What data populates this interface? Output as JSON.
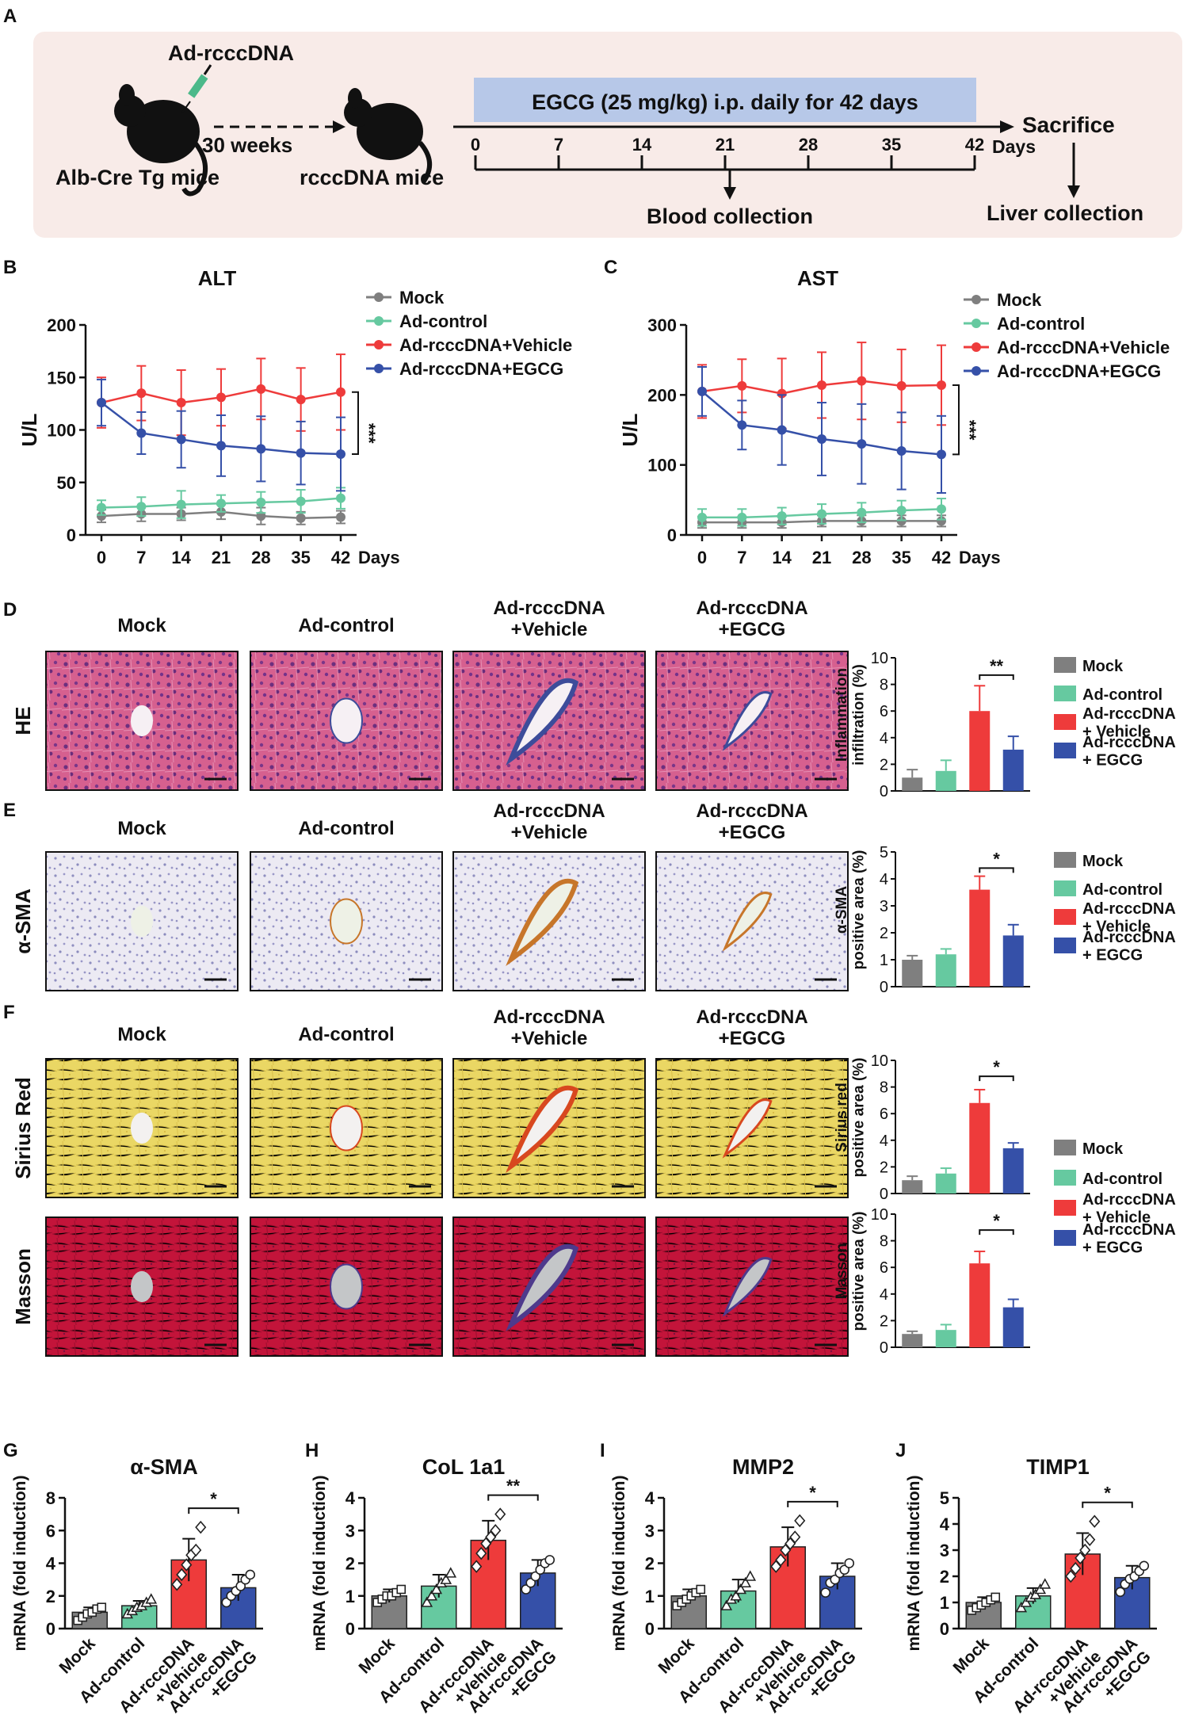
{
  "colors": {
    "mock": "#7f7f7f",
    "control": "#66c9a0",
    "vehicle": "#ee3b3b",
    "egcg": "#3550a8",
    "egcg_bar": "#b7c8e8",
    "panel_bg": "#f8ebe8"
  },
  "panel_a": {
    "letter": "A",
    "virus": "Ad-rcccDNA",
    "interval": "30 weeks",
    "mouse_left": "Alb-Cre Tg mice",
    "mouse_right": "rcccDNA mice",
    "treatment": "EGCG (25 mg/kg) i.p. daily for 42 days",
    "ticks": [
      "0",
      "7",
      "14",
      "21",
      "28",
      "35",
      "42"
    ],
    "days": "Days",
    "sacrifice": "Sacrifice",
    "blood": "Blood collection",
    "liver": "Liver collection",
    "mouse_icon": "mouse-icon",
    "syringe_icon": "syringe-icon"
  },
  "legend4": [
    "Mock",
    "Ad-control",
    "Ad-rcccDNA+Vehicle",
    "Ad-rcccDNA+EGCG"
  ],
  "legend_bar": [
    "Mock",
    "Ad-control",
    "Ad-rcccDNA\n+ Vehicle",
    "Ad-rcccDNA\n+ EGCG"
  ],
  "histology_cols": [
    "Mock",
    "Ad-control",
    "Ad-rcccDNA\n+Vehicle",
    "Ad-rcccDNA\n+EGCG"
  ],
  "stain_labels": [
    "HE",
    "α-SMA",
    "Sirius Red",
    "Masson"
  ],
  "panel_letters": [
    "B",
    "C",
    "D",
    "E",
    "F",
    "G",
    "H",
    "I",
    "J"
  ],
  "mrna_categories": [
    "Mock",
    "Ad-control",
    "Ad-rcccDNA\n+Vehicle",
    "Ad-rcccDNA\n+EGCG"
  ],
  "chart_data": [
    {
      "id": "B",
      "type": "line",
      "title": "ALT",
      "ylabel": "U/L",
      "xlabel": "Days",
      "x": [
        0,
        7,
        14,
        21,
        28,
        35,
        42
      ],
      "ylim": [
        0,
        200
      ],
      "yticks": [
        0,
        50,
        100,
        150,
        200
      ],
      "series": [
        {
          "name": "Mock",
          "values": [
            18,
            20,
            20,
            22,
            18,
            16,
            17
          ],
          "err": [
            6,
            7,
            6,
            7,
            8,
            6,
            6
          ]
        },
        {
          "name": "Ad-control",
          "values": [
            26,
            27,
            29,
            30,
            31,
            32,
            35
          ],
          "err": [
            7,
            9,
            13,
            8,
            10,
            11,
            10
          ]
        },
        {
          "name": "Ad-rcccDNA+Vehicle",
          "values": [
            126,
            135,
            126,
            131,
            139,
            129,
            136
          ],
          "err": [
            24,
            26,
            31,
            27,
            29,
            30,
            36
          ]
        },
        {
          "name": "Ad-rcccDNA+EGCG",
          "values": [
            126,
            97,
            91,
            85,
            82,
            78,
            77
          ],
          "err": [
            22,
            20,
            27,
            29,
            31,
            30,
            35
          ]
        }
      ],
      "significance": "***"
    },
    {
      "id": "C",
      "type": "line",
      "title": "AST",
      "ylabel": "U/L",
      "xlabel": "Days",
      "x": [
        0,
        7,
        14,
        21,
        28,
        35,
        42
      ],
      "ylim": [
        0,
        300
      ],
      "yticks": [
        0,
        100,
        200,
        300
      ],
      "series": [
        {
          "name": "Mock",
          "values": [
            18,
            18,
            18,
            20,
            20,
            20,
            20
          ],
          "err": [
            8,
            8,
            8,
            8,
            8,
            8,
            8
          ]
        },
        {
          "name": "Ad-control",
          "values": [
            25,
            25,
            27,
            30,
            32,
            35,
            37
          ],
          "err": [
            12,
            12,
            12,
            14,
            14,
            14,
            15
          ]
        },
        {
          "name": "Ad-rcccDNA+Vehicle",
          "values": [
            205,
            213,
            202,
            214,
            220,
            213,
            214
          ],
          "err": [
            38,
            38,
            50,
            47,
            55,
            52,
            57
          ]
        },
        {
          "name": "Ad-rcccDNA+EGCG",
          "values": [
            205,
            157,
            150,
            137,
            130,
            120,
            115
          ],
          "err": [
            35,
            35,
            50,
            52,
            57,
            55,
            55
          ]
        }
      ],
      "significance": "***"
    },
    {
      "id": "D",
      "type": "bar",
      "ylabel": "Inflammation\ninfiltration (%)",
      "ylim": [
        0,
        10
      ],
      "yticks": [
        0,
        2,
        4,
        6,
        8,
        10
      ],
      "categories": [
        "Mock",
        "Ad-control",
        "Ad-rcccDNA + Vehicle",
        "Ad-rcccDNA + EGCG"
      ],
      "values": [
        1.0,
        1.5,
        6.0,
        3.1
      ],
      "err": [
        0.6,
        0.8,
        1.9,
        1.0
      ],
      "significance": "**"
    },
    {
      "id": "E",
      "type": "bar",
      "ylabel": "α-SMA\npositive area (%)",
      "ylim": [
        0,
        5
      ],
      "yticks": [
        0,
        1,
        2,
        3,
        4,
        5
      ],
      "categories": [
        "Mock",
        "Ad-control",
        "Ad-rcccDNA + Vehicle",
        "Ad-rcccDNA + EGCG"
      ],
      "values": [
        1.0,
        1.2,
        3.6,
        1.9
      ],
      "err": [
        0.15,
        0.2,
        0.5,
        0.4
      ],
      "significance": "*"
    },
    {
      "id": "F1",
      "type": "bar",
      "ylabel": "Sirius red\npositive area (%)",
      "ylim": [
        0,
        10
      ],
      "yticks": [
        0,
        2,
        4,
        6,
        8,
        10
      ],
      "categories": [
        "Mock",
        "Ad-control",
        "Ad-rcccDNA + Vehicle",
        "Ad-rcccDNA + EGCG"
      ],
      "values": [
        1.0,
        1.5,
        6.8,
        3.4
      ],
      "err": [
        0.3,
        0.4,
        1.0,
        0.4
      ],
      "significance": "*"
    },
    {
      "id": "F2",
      "type": "bar",
      "ylabel": "Masson\npositive area (%)",
      "ylim": [
        0,
        10
      ],
      "yticks": [
        0,
        2,
        4,
        6,
        8,
        10
      ],
      "categories": [
        "Mock",
        "Ad-control",
        "Ad-rcccDNA + Vehicle",
        "Ad-rcccDNA + EGCG"
      ],
      "values": [
        1.0,
        1.3,
        6.3,
        3.0
      ],
      "err": [
        0.2,
        0.4,
        0.9,
        0.6
      ],
      "significance": "*"
    },
    {
      "id": "G",
      "type": "bar",
      "title": "α-SMA",
      "ylabel": "mRNA (fold induction)",
      "ylim": [
        0,
        8
      ],
      "yticks": [
        0,
        2,
        4,
        6,
        8
      ],
      "categories": [
        "Mock",
        "Ad-control",
        "Ad-rcccDNA+Vehicle",
        "Ad-rcccDNA+EGCG"
      ],
      "values": [
        1.0,
        1.4,
        4.2,
        2.5
      ],
      "err": [
        0.3,
        0.3,
        1.3,
        0.8
      ],
      "points": [
        [
          0.5,
          0.7,
          0.9,
          1.0,
          1.2,
          1.3
        ],
        [
          0.9,
          1.1,
          1.3,
          1.4,
          1.6,
          1.8
        ],
        [
          2.7,
          3.3,
          3.9,
          4.5,
          4.8,
          6.2
        ],
        [
          1.6,
          2.0,
          2.3,
          2.6,
          3.0,
          3.3
        ]
      ],
      "significance": "*"
    },
    {
      "id": "H",
      "type": "bar",
      "title": "CoL 1a1",
      "ylabel": "mRNA (fold induction)",
      "ylim": [
        0,
        4
      ],
      "yticks": [
        0,
        1,
        2,
        3,
        4
      ],
      "categories": [
        "Mock",
        "Ad-control",
        "Ad-rcccDNA+Vehicle",
        "Ad-rcccDNA+EGCG"
      ],
      "values": [
        1.0,
        1.3,
        2.7,
        1.7
      ],
      "err": [
        0.2,
        0.35,
        0.6,
        0.4
      ],
      "points": [
        [
          0.8,
          0.9,
          1.0,
          1.0,
          1.1,
          1.2
        ],
        [
          0.8,
          1.0,
          1.2,
          1.4,
          1.5,
          1.7
        ],
        [
          1.9,
          2.3,
          2.6,
          2.8,
          3.0,
          3.5
        ],
        [
          1.2,
          1.4,
          1.6,
          1.8,
          2.0,
          2.1
        ]
      ],
      "significance": "**"
    },
    {
      "id": "I",
      "type": "bar",
      "title": "MMP2",
      "ylabel": "mRNA (fold induction)",
      "ylim": [
        0,
        4
      ],
      "yticks": [
        0,
        1,
        2,
        3,
        4
      ],
      "categories": [
        "Mock",
        "Ad-control",
        "Ad-rcccDNA+Vehicle",
        "Ad-rcccDNA+EGCG"
      ],
      "values": [
        1.0,
        1.15,
        2.5,
        1.6
      ],
      "err": [
        0.2,
        0.35,
        0.6,
        0.4
      ],
      "points": [
        [
          0.7,
          0.8,
          0.9,
          1.0,
          1.1,
          1.2
        ],
        [
          0.7,
          0.9,
          1.0,
          1.2,
          1.4,
          1.6
        ],
        [
          1.9,
          2.1,
          2.4,
          2.6,
          2.8,
          3.3
        ],
        [
          1.1,
          1.4,
          1.5,
          1.7,
          1.8,
          2.0
        ]
      ],
      "significance": "*"
    },
    {
      "id": "J",
      "type": "bar",
      "title": "TIMP1",
      "ylabel": "mRNA (fold induction)",
      "ylim": [
        0,
        5
      ],
      "yticks": [
        0,
        1,
        2,
        3,
        4,
        5
      ],
      "categories": [
        "Mock",
        "Ad-control",
        "Ad-rcccDNA+Vehicle",
        "Ad-rcccDNA+EGCG"
      ],
      "values": [
        1.0,
        1.25,
        2.85,
        1.95
      ],
      "err": [
        0.2,
        0.3,
        0.8,
        0.45
      ],
      "points": [
        [
          0.7,
          0.8,
          0.9,
          1.0,
          1.1,
          1.2
        ],
        [
          0.8,
          1.0,
          1.2,
          1.3,
          1.5,
          1.7
        ],
        [
          2.0,
          2.3,
          2.7,
          3.0,
          3.4,
          4.1
        ],
        [
          1.4,
          1.7,
          1.9,
          2.0,
          2.2,
          2.4
        ]
      ],
      "significance": "*"
    }
  ]
}
